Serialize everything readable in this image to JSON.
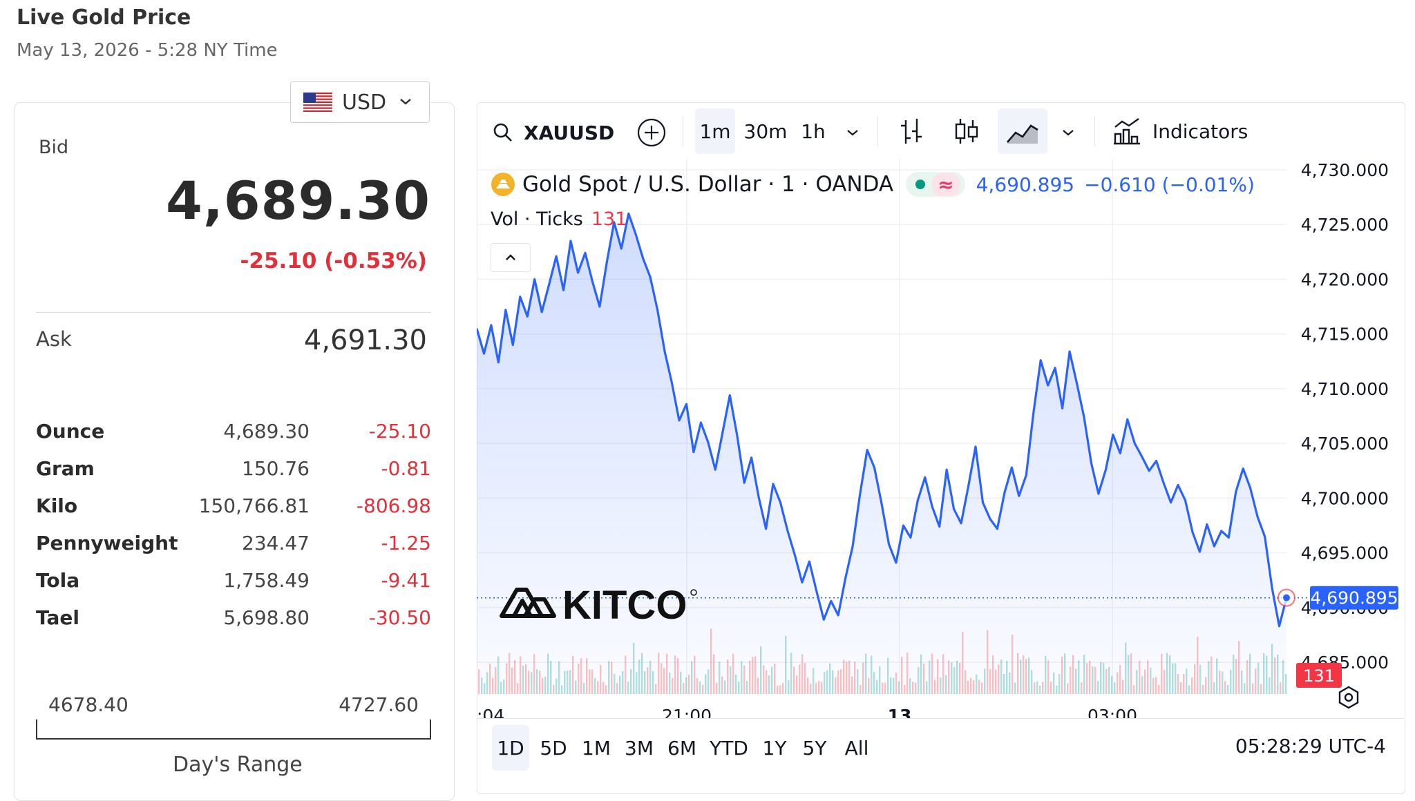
{
  "header": {
    "title": "Live Gold Price",
    "subtitle": "May 13, 2026 - 5:28 NY Time"
  },
  "currency": {
    "selected": "USD",
    "flag_icon": "us-flag-icon"
  },
  "quote": {
    "bid_label": "Bid",
    "bid_value": "4,689.30",
    "bid_change": "-25.10 (-0.53%)",
    "ask_label": "Ask",
    "ask_value": "4,691.30"
  },
  "units": [
    {
      "name": "Ounce",
      "price": "4,689.30",
      "change": "-25.10"
    },
    {
      "name": "Gram",
      "price": "150.76",
      "change": "-0.81"
    },
    {
      "name": "Kilo",
      "price": "150,766.81",
      "change": "-806.98"
    },
    {
      "name": "Pennyweight",
      "price": "234.47",
      "change": "-1.25"
    },
    {
      "name": "Tola",
      "price": "1,758.49",
      "change": "-9.41"
    },
    {
      "name": "Tael",
      "price": "5,698.80",
      "change": "-30.50"
    }
  ],
  "day_range": {
    "low": "4678.40",
    "high": "4727.60",
    "label": "Day's Range"
  },
  "toolbar": {
    "symbol": "XAUUSD",
    "intervals": [
      "1m",
      "30m",
      "1h"
    ],
    "active_interval": "1m",
    "indicators_label": "Indicators"
  },
  "legend": {
    "title": "Gold Spot / U.S. Dollar · 1 · OANDA",
    "approx_symbol": "≈",
    "last": "4,690.895",
    "change": "−0.610 (−0.01%)",
    "vol_label": "Vol · Ticks",
    "vol_value": "131"
  },
  "periods": [
    "1D",
    "5D",
    "1M",
    "3M",
    "6M",
    "YTD",
    "1Y",
    "5Y",
    "All"
  ],
  "active_period": "1D",
  "clock": "05:28:29 UTC-4",
  "colors": {
    "line": "#2962ff",
    "down": "#e0303a",
    "volume_up": "#26a69a",
    "volume_down": "#ef5350"
  },
  "chart_data": {
    "type": "area",
    "title": "Gold Spot / U.S. Dollar · 1 · OANDA",
    "x_tick_labels": [
      ":04",
      "21:00",
      "13",
      "03:00"
    ],
    "y_tick_labels": [
      "4,730.000",
      "4,725.000",
      "4,720.000",
      "4,715.000",
      "4,710.000",
      "4,705.000",
      "4,700.000",
      "4,695.000",
      "4,690.000",
      "4,685.000"
    ],
    "ylim": [
      4684,
      4731
    ],
    "last_price_label": "4,690.895",
    "volume_badge": "131",
    "series": [
      {
        "name": "XAUUSD",
        "values": [
          4715.5,
          4713.2,
          4715.8,
          4712.4,
          4717.2,
          4714.0,
          4718.4,
          4716.6,
          4720.0,
          4717.0,
          4719.5,
          4722.1,
          4719.0,
          4723.5,
          4720.6,
          4722.4,
          4719.8,
          4717.5,
          4721.6,
          4725.2,
          4722.8,
          4726.0,
          4724.1,
          4721.9,
          4720.2,
          4717.2,
          4713.4,
          4710.5,
          4707.1,
          4708.6,
          4704.2,
          4706.9,
          4705.1,
          4702.6,
          4706.0,
          4709.4,
          4705.8,
          4701.4,
          4703.7,
          4700.1,
          4697.2,
          4701.3,
          4699.6,
          4697.0,
          4694.8,
          4692.3,
          4694.2,
          4691.5,
          4688.9,
          4690.6,
          4689.3,
          4692.7,
          4695.6,
          4700.3,
          4704.4,
          4702.8,
          4699.5,
          4695.8,
          4694.1,
          4697.5,
          4696.4,
          4699.8,
          4701.9,
          4699.2,
          4697.4,
          4702.6,
          4699.0,
          4697.7,
          4701.1,
          4704.7,
          4699.6,
          4698.1,
          4697.2,
          4700.5,
          4702.8,
          4700.2,
          4702.1,
          4707.8,
          4712.6,
          4710.3,
          4711.9,
          4708.2,
          4713.4,
          4710.5,
          4707.4,
          4703.2,
          4700.4,
          4702.6,
          4705.8,
          4704.1,
          4707.2,
          4705.0,
          4703.8,
          4702.5,
          4703.4,
          4701.4,
          4699.6,
          4701.2,
          4699.8,
          4696.9,
          4695.1,
          4697.6,
          4695.6,
          4697.0,
          4696.4,
          4700.6,
          4702.7,
          4700.9,
          4698.3,
          4696.5,
          4691.8,
          4688.3,
          4690.9
        ]
      }
    ]
  }
}
